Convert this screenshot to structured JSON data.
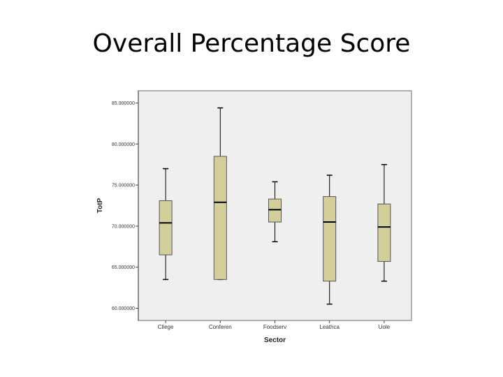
{
  "slide": {
    "title": "Overall Percentage Score"
  },
  "chart_data": {
    "type": "boxplot",
    "xlabel": "Sector",
    "ylabel": "TotP",
    "ylim": [
      58.5,
      86.5
    ],
    "yticks": [
      60,
      65,
      70,
      75,
      80,
      85
    ],
    "ytick_labels": [
      "60.000000",
      "65.000000",
      "70.000000",
      "75.000000",
      "80.000000",
      "85.000000"
    ],
    "grid": false,
    "colors": {
      "plot_background": "#efefef",
      "box_fill": "#d4cf9a",
      "outline": "#000000"
    },
    "categories": [
      "Cllege",
      "Conferen",
      "Foodserv",
      "Leathca",
      "Uole"
    ],
    "boxes": [
      {
        "category": "Cllege",
        "min": 63.5,
        "q1": 66.5,
        "median": 70.4,
        "q3": 73.1,
        "max": 77.0
      },
      {
        "category": "Conferen",
        "min": 63.5,
        "q1": 63.5,
        "median": 72.9,
        "q3": 78.5,
        "max": 84.4
      },
      {
        "category": "Foodserv",
        "min": 68.1,
        "q1": 70.5,
        "median": 72.0,
        "q3": 73.3,
        "max": 75.4
      },
      {
        "category": "Leathca",
        "min": 60.5,
        "q1": 63.3,
        "median": 70.5,
        "q3": 73.6,
        "max": 76.2
      },
      {
        "category": "Uole",
        "min": 63.3,
        "q1": 65.7,
        "median": 69.9,
        "q3": 72.7,
        "max": 77.5
      }
    ]
  }
}
